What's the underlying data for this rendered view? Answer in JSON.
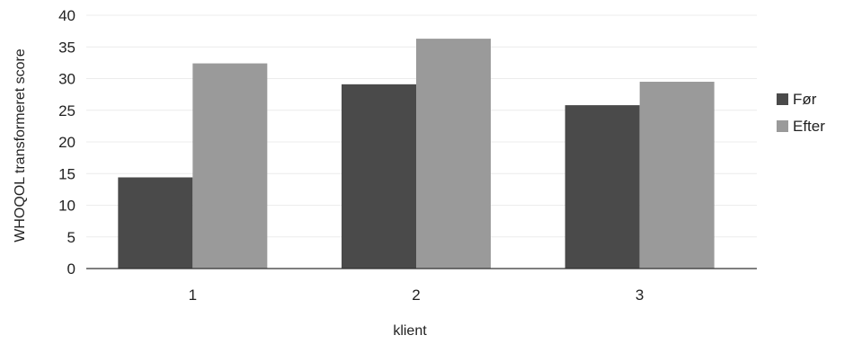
{
  "chart_data": {
    "type": "bar",
    "title": "",
    "xlabel": "klient",
    "ylabel": "WHOQOL transformeret score",
    "categories": [
      "1",
      "2",
      "3"
    ],
    "series": [
      {
        "name": "Før",
        "values": [
          14.4,
          29.1,
          25.8
        ],
        "color": "#4a4a4a"
      },
      {
        "name": "Efter",
        "values": [
          32.4,
          36.3,
          29.5
        ],
        "color": "#9a9a9a"
      }
    ],
    "ylim": [
      0,
      40
    ],
    "yticks": [
      "0",
      "5",
      "10",
      "15",
      "20",
      "25",
      "30",
      "35",
      "40"
    ],
    "grid": true,
    "legend_position": "right"
  }
}
